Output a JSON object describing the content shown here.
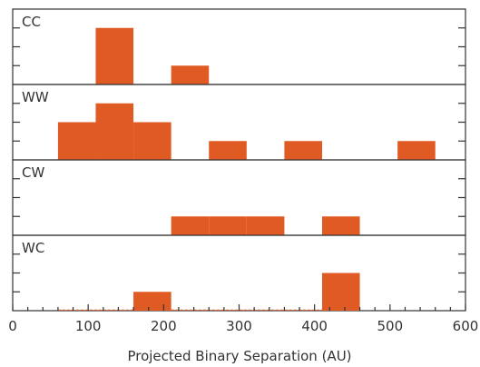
{
  "chart_data": {
    "type": "bar",
    "xlabel": "Projected Binary Separation (AU)",
    "xlim": [
      0,
      600
    ],
    "x_ticks": [
      "0",
      "100",
      "200",
      "300",
      "400",
      "500",
      "600"
    ],
    "bin_width": 50,
    "colors": {
      "bar": "#e05a24",
      "axis": "#333333"
    },
    "panels": [
      {
        "name": "CC",
        "ylim": [
          0,
          4
        ],
        "bins": [
          {
            "x0": 110,
            "x1": 160,
            "count": 3
          },
          {
            "x0": 210,
            "x1": 260,
            "count": 1
          }
        ]
      },
      {
        "name": "WW",
        "ylim": [
          0,
          4
        ],
        "bins": [
          {
            "x0": 60,
            "x1": 110,
            "count": 2
          },
          {
            "x0": 110,
            "x1": 160,
            "count": 3
          },
          {
            "x0": 160,
            "x1": 210,
            "count": 2
          },
          {
            "x0": 260,
            "x1": 310,
            "count": 1
          },
          {
            "x0": 360,
            "x1": 410,
            "count": 1
          },
          {
            "x0": 510,
            "x1": 560,
            "count": 1
          }
        ]
      },
      {
        "name": "CW",
        "ylim": [
          0,
          4
        ],
        "bins": [
          {
            "x0": 210,
            "x1": 260,
            "count": 1
          },
          {
            "x0": 260,
            "x1": 310,
            "count": 1
          },
          {
            "x0": 310,
            "x1": 360,
            "count": 1
          },
          {
            "x0": 410,
            "x1": 460,
            "count": 1
          }
        ]
      },
      {
        "name": "WC",
        "ylim": [
          0,
          4
        ],
        "bins": [
          {
            "x0": 160,
            "x1": 210,
            "count": 1
          },
          {
            "x0": 410,
            "x1": 460,
            "count": 2
          }
        ],
        "outline_range": [
          60,
          460
        ]
      }
    ]
  }
}
